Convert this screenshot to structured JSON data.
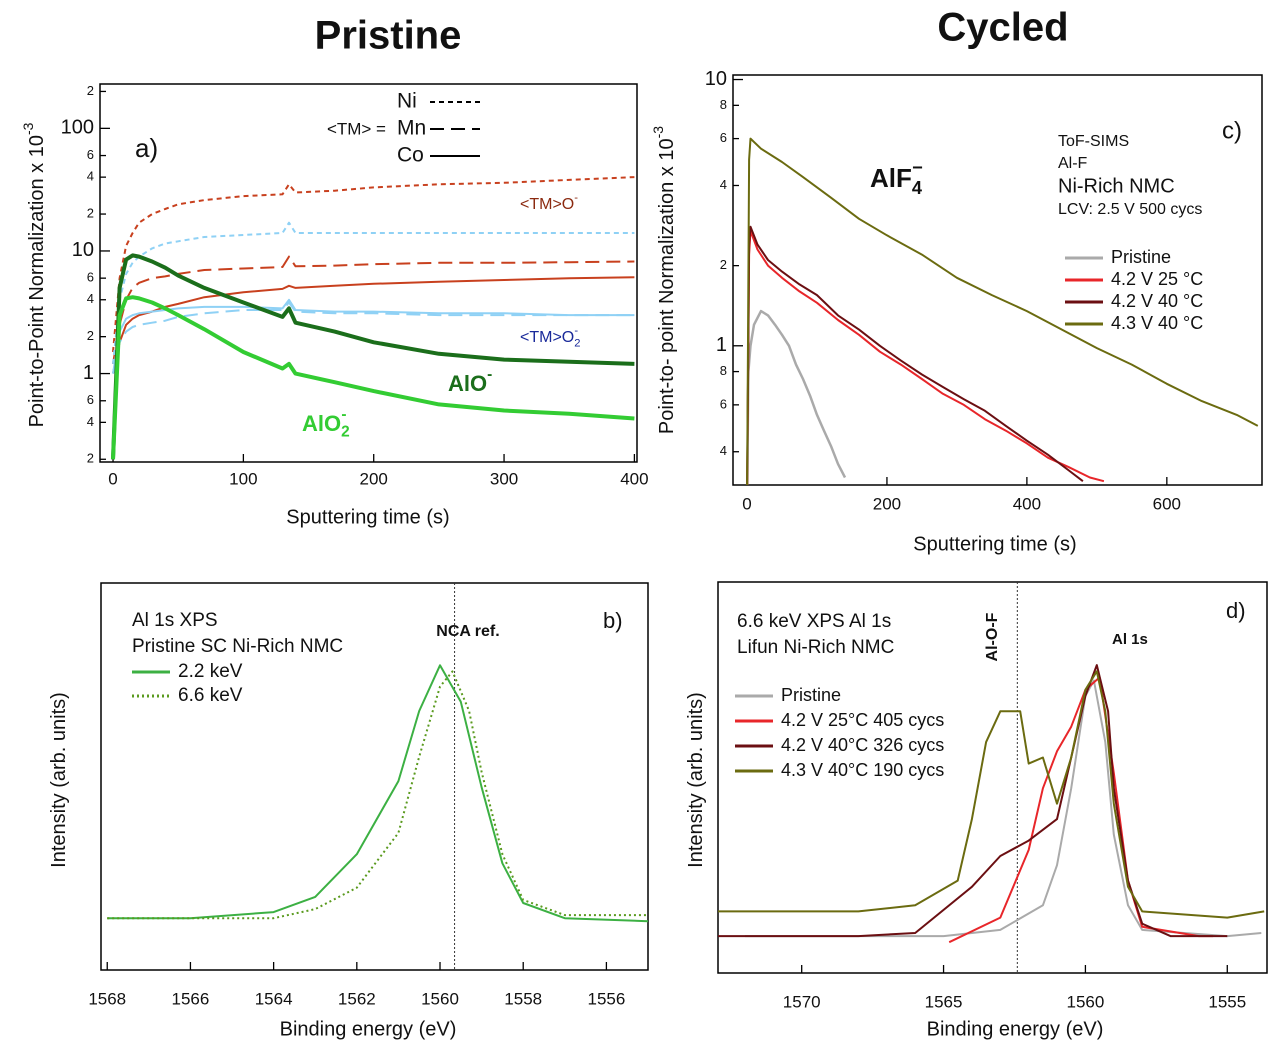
{
  "column_titles": [
    "Pristine",
    "Cycled"
  ],
  "chart_data": [
    {
      "type": "line",
      "panel_label": "a)",
      "ylog": true,
      "xlabel": "Sputtering time (s)",
      "ylabel": {
        "text": "Point-to-Point Normalization x 10",
        "sup": "-3"
      },
      "xlim": [
        -10,
        402
      ],
      "ylim": [
        0.19,
        230
      ],
      "xticks": [
        0,
        100,
        200,
        300,
        400
      ],
      "yticks": [
        {
          "value": 0.2,
          "label": "2"
        },
        {
          "value": 0.4,
          "label": "4"
        },
        {
          "value": 0.6,
          "label": "6"
        },
        1,
        {
          "value": 2,
          "label": "2"
        },
        {
          "value": 4,
          "label": "4"
        },
        {
          "value": 6,
          "label": "6"
        },
        10,
        {
          "value": 20,
          "label": "2"
        },
        {
          "value": 40,
          "label": "4"
        },
        {
          "value": 60,
          "label": "6"
        },
        100,
        {
          "value": 200,
          "label": "2"
        }
      ],
      "style_legend": {
        "prefix": "<TM> =",
        "entries": [
          {
            "name": "Ni",
            "dash": "short"
          },
          {
            "name": "Mn",
            "dash": "long"
          },
          {
            "name": "Co",
            "dash": "solid"
          }
        ]
      },
      "annotations": [
        {
          "text": "<TM>O",
          "sup": "-",
          "color": "#8b2a10"
        },
        {
          "text": "<TM>O",
          "sub": "2",
          "sup": "-",
          "color": "#1a2a9a"
        },
        {
          "text": "AlO",
          "sup": "-",
          "color": "#1b6e1b"
        },
        {
          "text": "AlO",
          "sub": "2",
          "sup": "-",
          "color": "#33cc33"
        }
      ],
      "x": [
        0,
        5,
        10,
        15,
        20,
        30,
        40,
        50,
        70,
        100,
        130,
        135,
        140,
        170,
        200,
        250,
        300,
        350,
        400
      ],
      "series": [
        {
          "color": "#c8401e",
          "dash": "short",
          "width": 2,
          "values": [
            1.5,
            6,
            11,
            14,
            17,
            20,
            22,
            24,
            26,
            28,
            29,
            35,
            30,
            31,
            33,
            35,
            36,
            38,
            40
          ]
        },
        {
          "color": "#c8401e",
          "dash": "long",
          "width": 2,
          "values": [
            1.2,
            2.5,
            4,
            5,
            5.5,
            6,
            6.2,
            6.5,
            7,
            7.2,
            7.4,
            9,
            7.5,
            7.6,
            7.8,
            8,
            8,
            8.1,
            8.2
          ]
        },
        {
          "color": "#c8401e",
          "dash": "solid",
          "width": 2,
          "values": [
            1,
            1.8,
            2.5,
            2.8,
            3,
            3.2,
            3.5,
            3.7,
            4.2,
            4.6,
            4.9,
            5.2,
            5,
            5.2,
            5.4,
            5.6,
            5.8,
            6,
            6.1
          ]
        },
        {
          "color": "#8fd1f5",
          "dash": "short",
          "width": 2,
          "values": [
            1.2,
            4,
            6.5,
            8,
            9,
            10.5,
            11.5,
            12,
            13,
            13.5,
            14,
            17,
            14,
            14,
            14,
            14,
            14,
            14,
            14
          ]
        },
        {
          "color": "#8fd1f5",
          "dash": "long",
          "width": 2,
          "values": [
            1,
            1.8,
            2.2,
            2.4,
            2.5,
            2.6,
            2.7,
            2.9,
            3.1,
            3.3,
            3.3,
            3.8,
            3.2,
            3.1,
            3.1,
            3.0,
            3.0,
            3.0,
            3.0
          ]
        },
        {
          "color": "#8fd1f5",
          "dash": "solid",
          "width": 2,
          "values": [
            1,
            2.2,
            2.8,
            3,
            3.1,
            3.2,
            3.3,
            3.4,
            3.5,
            3.5,
            3.4,
            4,
            3.3,
            3.2,
            3.2,
            3.1,
            3.1,
            3.0,
            3.0
          ]
        },
        {
          "color": "#1b6e1b",
          "dash": "solid",
          "width": 4,
          "values": [
            0.2,
            5,
            8.5,
            9.2,
            9,
            8.2,
            7.3,
            6.3,
            5,
            3.8,
            2.9,
            3.4,
            2.6,
            2.2,
            1.8,
            1.45,
            1.3,
            1.25,
            1.2
          ]
        },
        {
          "color": "#33cc33",
          "dash": "solid",
          "width": 4,
          "values": [
            0.2,
            3,
            4.1,
            4.2,
            4.1,
            3.8,
            3.4,
            3.0,
            2.3,
            1.5,
            1.1,
            1.2,
            1.0,
            0.85,
            0.72,
            0.56,
            0.5,
            0.47,
            0.43
          ]
        }
      ]
    },
    {
      "type": "line",
      "panel_label": "c)",
      "ylog": true,
      "xlabel": "Sputtering time (s)",
      "ylabel": {
        "text": "Point-to- point Normalization  x 10",
        "sup": "-3"
      },
      "xlim": [
        -20,
        736
      ],
      "ylim": [
        0.3,
        10.4
      ],
      "xticks": [
        0,
        200,
        400,
        600
      ],
      "yticks": [
        {
          "value": 0.4,
          "label": "4"
        },
        {
          "value": 0.6,
          "label": "6"
        },
        {
          "value": 0.8,
          "label": "8"
        },
        1,
        {
          "value": 2,
          "label": "2"
        },
        {
          "value": 4,
          "label": "4"
        },
        {
          "value": 6,
          "label": "6"
        },
        {
          "value": 8,
          "label": "8"
        },
        10
      ],
      "annotations": [
        {
          "text": "AlF",
          "sub": "4",
          "sup": "−",
          "color": "#111111"
        }
      ],
      "notes": [
        "ToF-SIMS",
        "Al-F",
        "Ni-Rich NMC",
        "LCV: 2.5 V 500 cycs"
      ],
      "series": [
        {
          "name": "Pristine",
          "color": "#aaaaaa",
          "dash": "solid",
          "width": 2.5,
          "x": [
            0,
            2,
            5,
            10,
            20,
            30,
            40,
            50,
            60,
            70,
            80,
            90,
            100,
            110,
            120,
            130,
            140
          ],
          "values": [
            0.25,
            0.8,
            1.0,
            1.2,
            1.35,
            1.3,
            1.2,
            1.1,
            1.0,
            0.85,
            0.75,
            0.65,
            0.55,
            0.48,
            0.42,
            0.36,
            0.32
          ]
        },
        {
          "name": "4.2 V 25 °C",
          "color": "#e8262a",
          "dash": "solid",
          "width": 2,
          "x": [
            0,
            3,
            5,
            15,
            30,
            50,
            75,
            100,
            130,
            160,
            190,
            220,
            250,
            280,
            310,
            340,
            370,
            400,
            430,
            460,
            490,
            510
          ],
          "values": [
            0.25,
            2.2,
            2.7,
            2.3,
            2.0,
            1.8,
            1.6,
            1.45,
            1.25,
            1.1,
            0.95,
            0.85,
            0.75,
            0.66,
            0.6,
            0.53,
            0.48,
            0.43,
            0.38,
            0.35,
            0.32,
            0.31
          ]
        },
        {
          "name": "4.2 V 40 °C",
          "color": "#6b0f12",
          "dash": "solid",
          "width": 2,
          "x": [
            0,
            3,
            5,
            15,
            30,
            50,
            75,
            100,
            130,
            160,
            190,
            220,
            250,
            280,
            310,
            340,
            370,
            400,
            430,
            460,
            480
          ],
          "values": [
            0.25,
            2.4,
            2.8,
            2.4,
            2.1,
            1.9,
            1.7,
            1.55,
            1.3,
            1.15,
            1.0,
            0.88,
            0.78,
            0.7,
            0.63,
            0.57,
            0.5,
            0.44,
            0.39,
            0.34,
            0.31
          ]
        },
        {
          "name": "4.3 V 40 °C",
          "color": "#6b6b10",
          "dash": "solid",
          "width": 2,
          "x": [
            0,
            3,
            5,
            20,
            50,
            80,
            120,
            160,
            200,
            250,
            300,
            350,
            400,
            450,
            500,
            550,
            600,
            650,
            700,
            730
          ],
          "values": [
            0.25,
            5,
            6,
            5.5,
            4.9,
            4.3,
            3.6,
            3.0,
            2.6,
            2.2,
            1.8,
            1.55,
            1.35,
            1.15,
            0.98,
            0.85,
            0.72,
            0.62,
            0.55,
            0.5
          ]
        }
      ]
    },
    {
      "type": "line",
      "panel_label": "b)",
      "ylog": false,
      "xlabel": "Binding energy (eV)",
      "ylabel": {
        "text": "Intensity (arb. units)"
      },
      "xlim": [
        1568.15,
        1555
      ],
      "ylim": [
        0,
        1.27
      ],
      "xticks": [
        1568,
        1566,
        1564,
        1562,
        1560,
        1558,
        1556
      ],
      "vline": {
        "x": 1559.65,
        "label": "NCA ref."
      },
      "notes": [
        "Al 1s XPS",
        "Pristine SC Ni-Rich NMC"
      ],
      "series": [
        {
          "name": "2.2 keV",
          "color": "#3cb043",
          "dash": "solid",
          "width": 2,
          "x": [
            1568,
            1566,
            1564,
            1563,
            1562,
            1561,
            1560.5,
            1560,
            1559.5,
            1559,
            1558.5,
            1558,
            1557,
            1555
          ],
          "values": [
            0.17,
            0.17,
            0.19,
            0.24,
            0.38,
            0.62,
            0.85,
            1.0,
            0.88,
            0.6,
            0.35,
            0.22,
            0.17,
            0.16
          ]
        },
        {
          "name": "6.6 keV",
          "color": "#5a9a1e",
          "dash": "dot",
          "width": 2,
          "x": [
            1568,
            1566,
            1564,
            1563,
            1562,
            1561,
            1560.5,
            1560,
            1559.7,
            1559.3,
            1559,
            1558.5,
            1558,
            1557,
            1555
          ],
          "values": [
            0.17,
            0.17,
            0.17,
            0.2,
            0.27,
            0.45,
            0.7,
            0.93,
            0.98,
            0.85,
            0.65,
            0.38,
            0.23,
            0.18,
            0.18
          ]
        }
      ]
    },
    {
      "type": "line",
      "panel_label": "d)",
      "ylog": false,
      "xlabel": "Binding energy (eV)",
      "ylabel": {
        "text": "Intensity (arb. units)"
      },
      "xlim": [
        1572.95,
        1553.6
      ],
      "ylim": [
        0,
        1.27
      ],
      "xticks": [
        1570,
        1565,
        1560,
        1555
      ],
      "vline": {
        "x": 1562.4,
        "label": "Al-O-F"
      },
      "annotations": [
        {
          "text": "Al 1s",
          "color": "#111111"
        }
      ],
      "notes": [
        "6.6 keV XPS Al 1s",
        "Lifun Ni-Rich NMC"
      ],
      "series": [
        {
          "name": "Pristine",
          "color": "#aaaaaa",
          "dash": "solid",
          "width": 2,
          "x": [
            1572,
            1565,
            1563,
            1561.5,
            1561,
            1560.5,
            1560,
            1559.7,
            1559.3,
            1559,
            1558.5,
            1558,
            1555,
            1553.8
          ],
          "values": [
            0.12,
            0.12,
            0.14,
            0.22,
            0.35,
            0.6,
            0.9,
            0.95,
            0.75,
            0.45,
            0.22,
            0.14,
            0.12,
            0.13
          ]
        },
        {
          "name": "4.2 V 25°C 405 cycs",
          "color": "#e8262a",
          "dash": "solid",
          "width": 2,
          "x": [
            1564.8,
            1563,
            1562,
            1561.5,
            1561,
            1560.5,
            1560,
            1559.5,
            1559,
            1558.5,
            1558,
            1556,
            1555.5
          ],
          "values": [
            0.1,
            0.18,
            0.4,
            0.6,
            0.72,
            0.8,
            0.92,
            0.96,
            0.65,
            0.3,
            0.15,
            0.12,
            0.12
          ]
        },
        {
          "name": "4.2 V 40°C 326 cycs",
          "color": "#6b0f12",
          "dash": "solid",
          "width": 2,
          "x": [
            1573,
            1568,
            1566,
            1564,
            1563,
            1562,
            1561,
            1560.5,
            1560,
            1559.6,
            1559.2,
            1559,
            1558.5,
            1558,
            1557,
            1555
          ],
          "values": [
            0.12,
            0.12,
            0.13,
            0.28,
            0.38,
            0.43,
            0.5,
            0.7,
            0.9,
            1.0,
            0.85,
            0.6,
            0.3,
            0.16,
            0.12,
            0.12
          ]
        },
        {
          "name": "4.3 V 40°C 190 cycs",
          "color": "#6b6b10",
          "dash": "solid",
          "width": 2,
          "x": [
            1573,
            1568,
            1566,
            1564.5,
            1564,
            1563.5,
            1563,
            1562.3,
            1562,
            1561.5,
            1561,
            1560.5,
            1560,
            1559.6,
            1559.3,
            1559,
            1558.5,
            1558,
            1555,
            1553.7
          ],
          "values": [
            0.2,
            0.2,
            0.22,
            0.3,
            0.5,
            0.75,
            0.85,
            0.85,
            0.68,
            0.7,
            0.55,
            0.7,
            0.92,
            0.98,
            0.85,
            0.55,
            0.28,
            0.2,
            0.18,
            0.2
          ]
        }
      ]
    }
  ]
}
